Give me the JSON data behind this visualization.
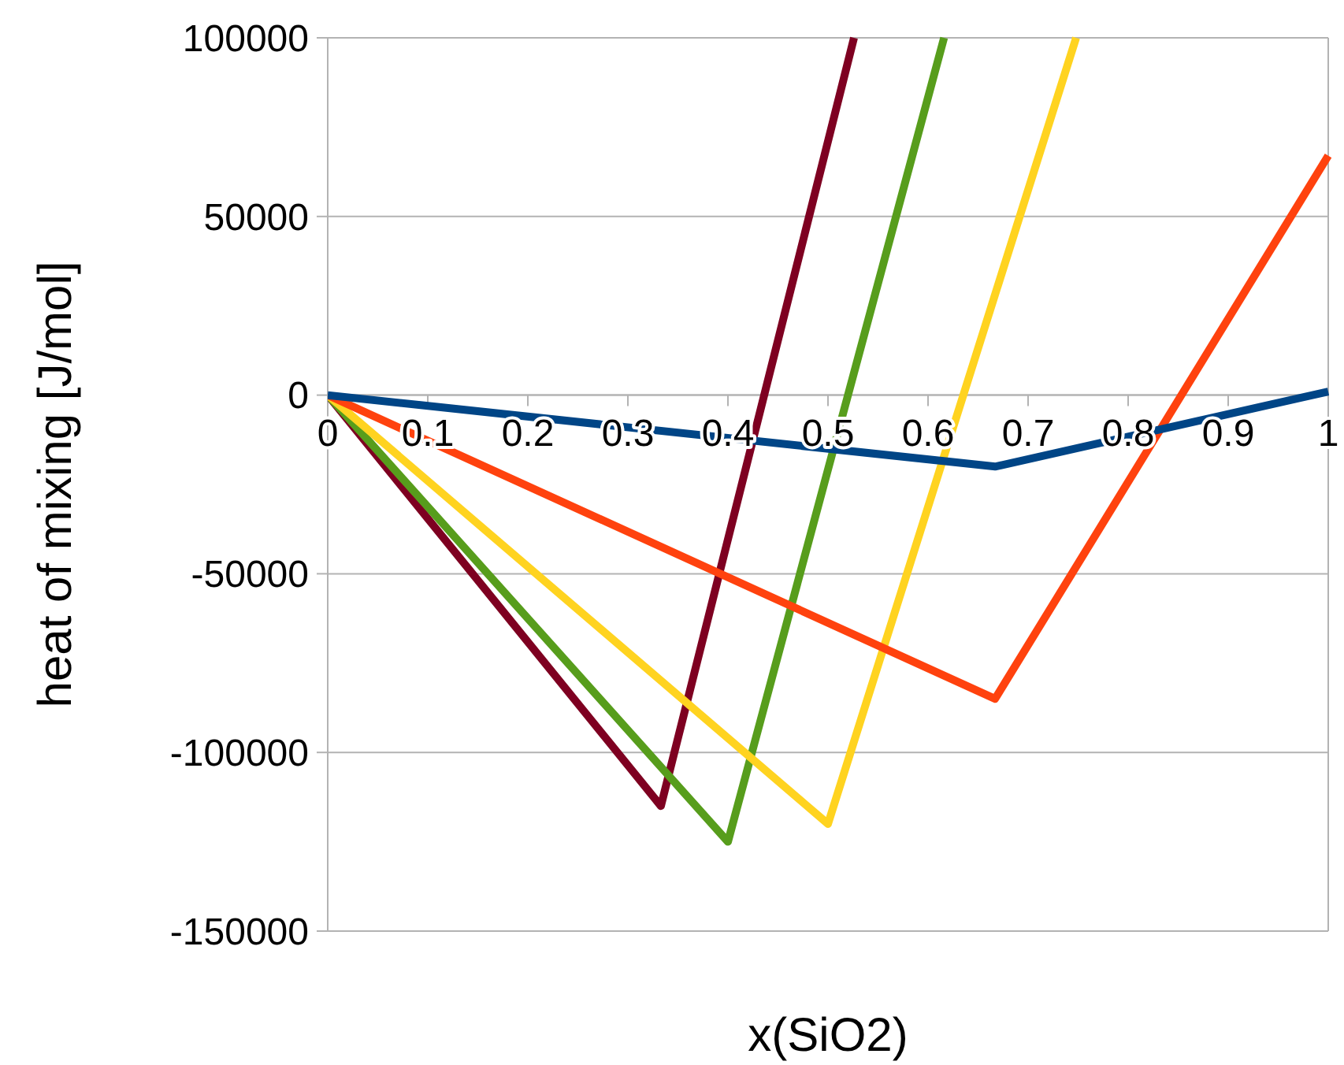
{
  "chart_data": {
    "type": "line",
    "xlabel": "x(SiO2)",
    "ylabel": "heat of mixing [J/mol]",
    "xlim": [
      0,
      1
    ],
    "xticks": [
      0,
      0.1,
      0.2,
      0.3,
      0.4,
      0.5,
      0.6,
      0.7,
      0.8,
      0.9,
      1
    ],
    "ylim": [
      -150000,
      100000
    ],
    "yticks": [
      -150000,
      -100000,
      -50000,
      0,
      50000,
      100000
    ],
    "grid": "y",
    "marker": "none",
    "line_style": "solid",
    "series": [
      {
        "color": "#7e0021",
        "x": [
          0,
          0.333,
          0.526
        ],
        "values": [
          0,
          -115000,
          100000
        ]
      },
      {
        "color": "#579d1c",
        "x": [
          0,
          0.4,
          0.616
        ],
        "values": [
          0,
          -125000,
          100000
        ]
      },
      {
        "color": "#ffd320",
        "x": [
          0,
          0.5,
          0.748
        ],
        "values": [
          0,
          -120000,
          100000
        ]
      },
      {
        "color": "#ff420e",
        "x": [
          0,
          0.667,
          1
        ],
        "values": [
          0,
          -85000,
          67000
        ]
      },
      {
        "color": "#004586",
        "x": [
          0,
          0.667,
          1
        ],
        "values": [
          0,
          -20000,
          1000
        ]
      }
    ]
  }
}
